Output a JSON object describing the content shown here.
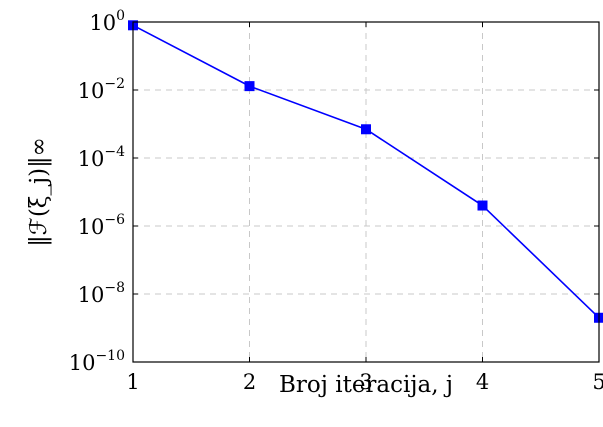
{
  "chart_data": {
    "type": "line",
    "xlabel": "Broj iteracija, j",
    "ylabel": "‖ℱ(ξ_j)‖∞",
    "x": [
      1,
      2,
      3,
      4,
      5
    ],
    "y_scale": "log",
    "xlim": [
      1,
      5
    ],
    "ylim": [
      1e-10,
      1
    ],
    "grid": true,
    "series": [
      {
        "color": "#0000ff",
        "marker": "square",
        "values": [
          0.8,
          0.013,
          0.0007,
          4e-06,
          2e-09
        ]
      }
    ],
    "x_ticks": [
      "1",
      "2",
      "3",
      "4",
      "5"
    ],
    "y_ticks": [
      {
        "base": "10",
        "exp": "0"
      },
      {
        "base": "10",
        "exp": "−2"
      },
      {
        "base": "10",
        "exp": "−4"
      },
      {
        "base": "10",
        "exp": "−6"
      },
      {
        "base": "10",
        "exp": "−8"
      },
      {
        "base": "10",
        "exp": "−10"
      }
    ]
  }
}
